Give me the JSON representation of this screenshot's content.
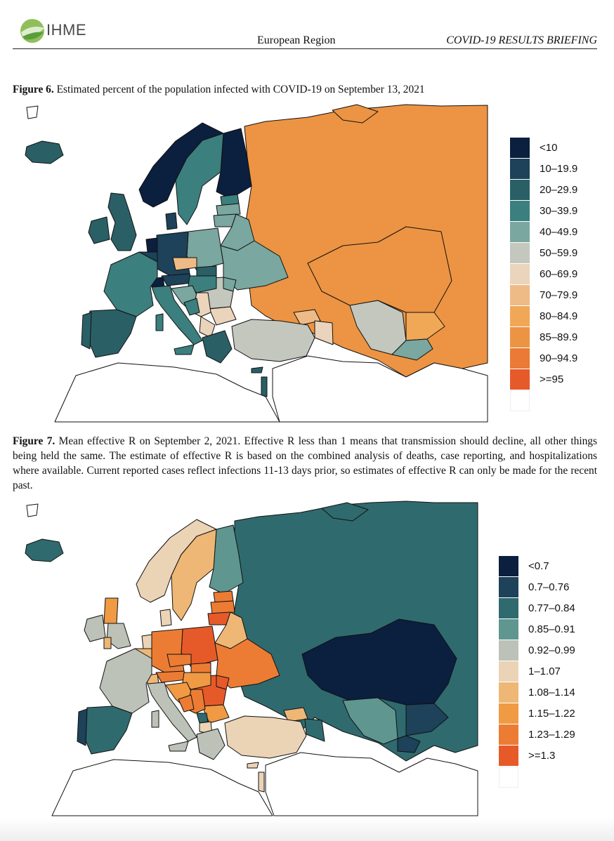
{
  "header": {
    "logo_text": "IHME",
    "region": "European Region",
    "briefing": "COVID-19 RESULTS BRIEFING"
  },
  "figure6": {
    "label": "Figure 6.",
    "text": "Estimated percent of the population infected with COVID-19 on September 13, 2021",
    "legend": [
      {
        "label": "<10",
        "color": "#0b1f3f"
      },
      {
        "label": "10–19.9",
        "color": "#1d4259"
      },
      {
        "label": "20–29.9",
        "color": "#2a5f66"
      },
      {
        "label": "30–39.9",
        "color": "#3b7f7e"
      },
      {
        "label": "40–49.9",
        "color": "#7aa7a0"
      },
      {
        "label": "50–59.9",
        "color": "#c3c7be"
      },
      {
        "label": "60–69.9",
        "color": "#ead4bb"
      },
      {
        "label": "70–79.9",
        "color": "#eebb86"
      },
      {
        "label": "80–84.9",
        "color": "#f0a857"
      },
      {
        "label": "85–89.9",
        "color": "#ec9443"
      },
      {
        "label": "90–94.9",
        "color": "#ea7a35"
      },
      {
        "label": ">=95",
        "color": "#e65a2a"
      },
      {
        "label": "",
        "color": "#ffffff"
      }
    ]
  },
  "figure7": {
    "label": "Figure 7.",
    "text": "Mean effective R on September 2, 2021. Effective R less than 1 means that transmission should decline, all other things being held the same. The estimate of effective R is based on the combined analysis of deaths, case reporting, and hospitalizations where available. Current reported cases reflect infections 11-13 days prior, so estimates of effective R can only be made for the recent past.",
    "legend": [
      {
        "label": "<0.7",
        "color": "#0b1f3f"
      },
      {
        "label": "0.7–0.76",
        "color": "#1d4259"
      },
      {
        "label": "0.77–0.84",
        "color": "#2f6a6e"
      },
      {
        "label": "0.85–0.91",
        "color": "#5f9690"
      },
      {
        "label": "0.92–0.99",
        "color": "#bcc2b7"
      },
      {
        "label": "1–1.07",
        "color": "#ebd3b6"
      },
      {
        "label": "1.08–1.14",
        "color": "#eeb776"
      },
      {
        "label": "1.15–1.22",
        "color": "#f09a44"
      },
      {
        "label": "1.23–1.29",
        "color": "#ec7c34"
      },
      {
        "label": ">=1.3",
        "color": "#e65a2a"
      },
      {
        "label": "",
        "color": "#ffffff"
      }
    ]
  }
}
